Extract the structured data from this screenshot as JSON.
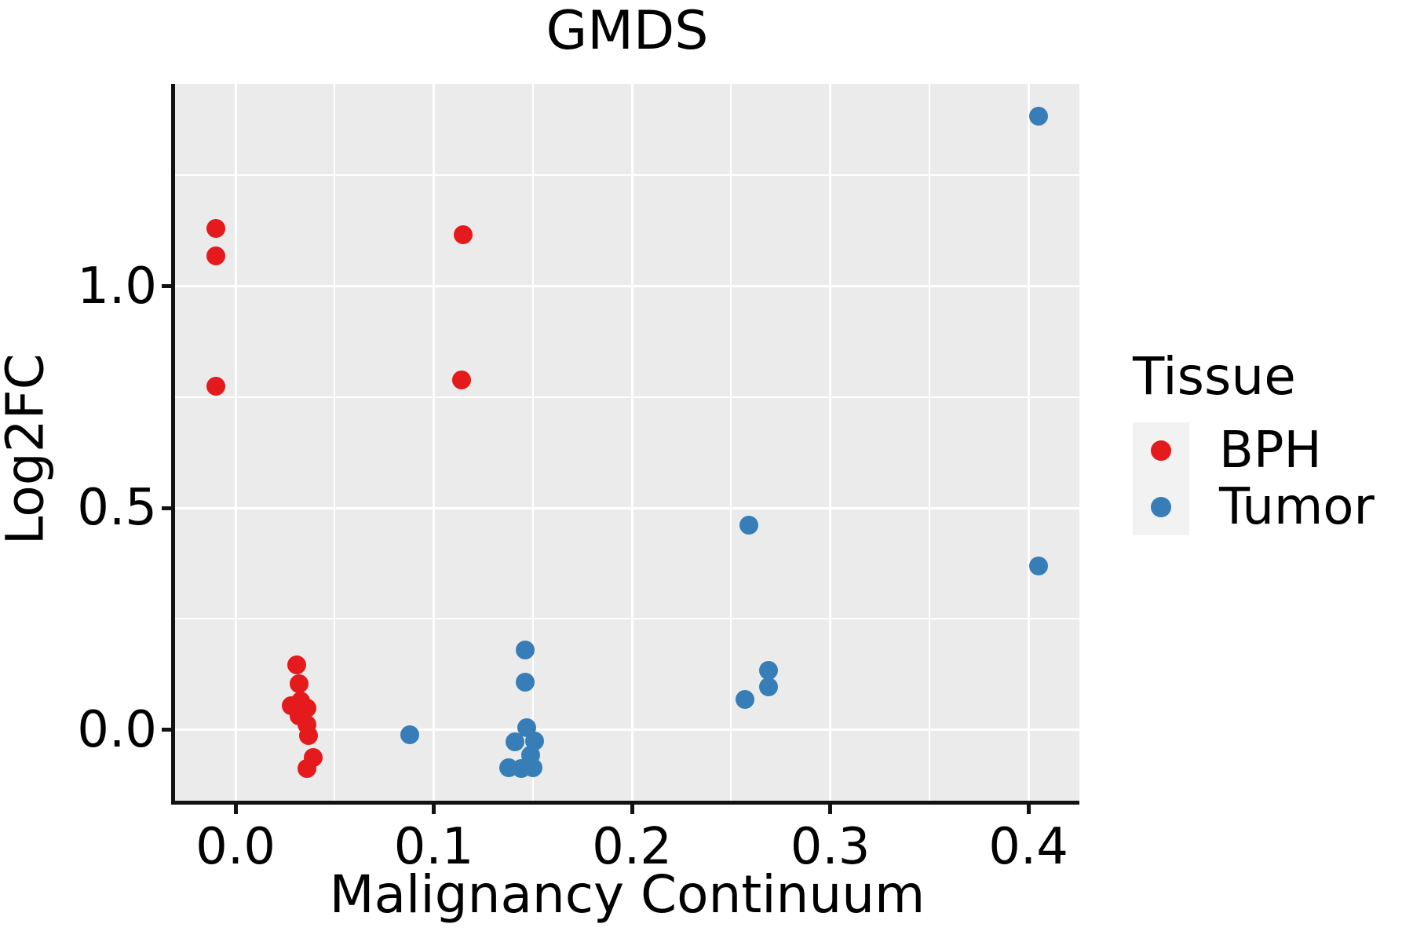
{
  "title": "GMDS",
  "legend": {
    "title": "Tissue",
    "position": "right",
    "items": [
      {
        "label": "BPH",
        "color": "#E41A1C"
      },
      {
        "label": "Tumor",
        "color": "#377EB8"
      }
    ]
  },
  "colors": {
    "panel_background": "#EBEBEB",
    "grid": "#FFFFFF",
    "axis": "#121212",
    "legend_key_background": "#F2F2F2"
  },
  "chart_data": {
    "type": "scatter",
    "title": "GMDS",
    "xlabel": "Malignancy Continuum",
    "ylabel": "Log2FC",
    "xlim": [
      -0.0305,
      0.4257
    ],
    "ylim": [
      -0.16,
      1.456
    ],
    "x_major_ticks": [
      0.0,
      0.1,
      0.2,
      0.3,
      0.4
    ],
    "x_tick_labels": [
      "0.0",
      "0.1",
      "0.2",
      "0.3",
      "0.4"
    ],
    "x_minor_ticks": [
      0.05,
      0.15,
      0.25,
      0.35
    ],
    "y_major_ticks": [
      0.0,
      0.5,
      1.0
    ],
    "y_tick_labels": [
      "0.0",
      "0.5",
      "1.0"
    ],
    "y_minor_ticks": [
      0.25,
      0.75,
      1.25
    ],
    "grid": true,
    "legend_position": "right",
    "series": [
      {
        "name": "BPH",
        "color": "#E41A1C",
        "points": [
          [
            -0.01,
            1.13
          ],
          [
            -0.01,
            1.069
          ],
          [
            -0.01,
            0.775
          ],
          [
            0.115,
            1.117
          ],
          [
            0.114,
            0.789
          ],
          [
            0.031,
            0.146
          ],
          [
            0.032,
            0.103
          ],
          [
            0.033,
            0.064
          ],
          [
            0.028,
            0.055
          ],
          [
            0.036,
            0.049
          ],
          [
            0.032,
            0.031
          ],
          [
            0.036,
            0.011
          ],
          [
            0.037,
            -0.013
          ],
          [
            0.039,
            -0.063
          ],
          [
            0.036,
            -0.087
          ]
        ]
      },
      {
        "name": "Tumor",
        "color": "#377EB8",
        "points": [
          [
            0.088,
            -0.012
          ],
          [
            0.146,
            0.179
          ],
          [
            0.146,
            0.108
          ],
          [
            0.147,
            0.005
          ],
          [
            0.141,
            -0.028
          ],
          [
            0.151,
            -0.025
          ],
          [
            0.149,
            -0.057
          ],
          [
            0.138,
            -0.085
          ],
          [
            0.15,
            -0.085
          ],
          [
            0.144,
            -0.088
          ],
          [
            0.259,
            0.462
          ],
          [
            0.269,
            0.134
          ],
          [
            0.269,
            0.097
          ],
          [
            0.257,
            0.068
          ],
          [
            0.405,
            1.383
          ],
          [
            0.405,
            0.37
          ]
        ]
      }
    ]
  }
}
